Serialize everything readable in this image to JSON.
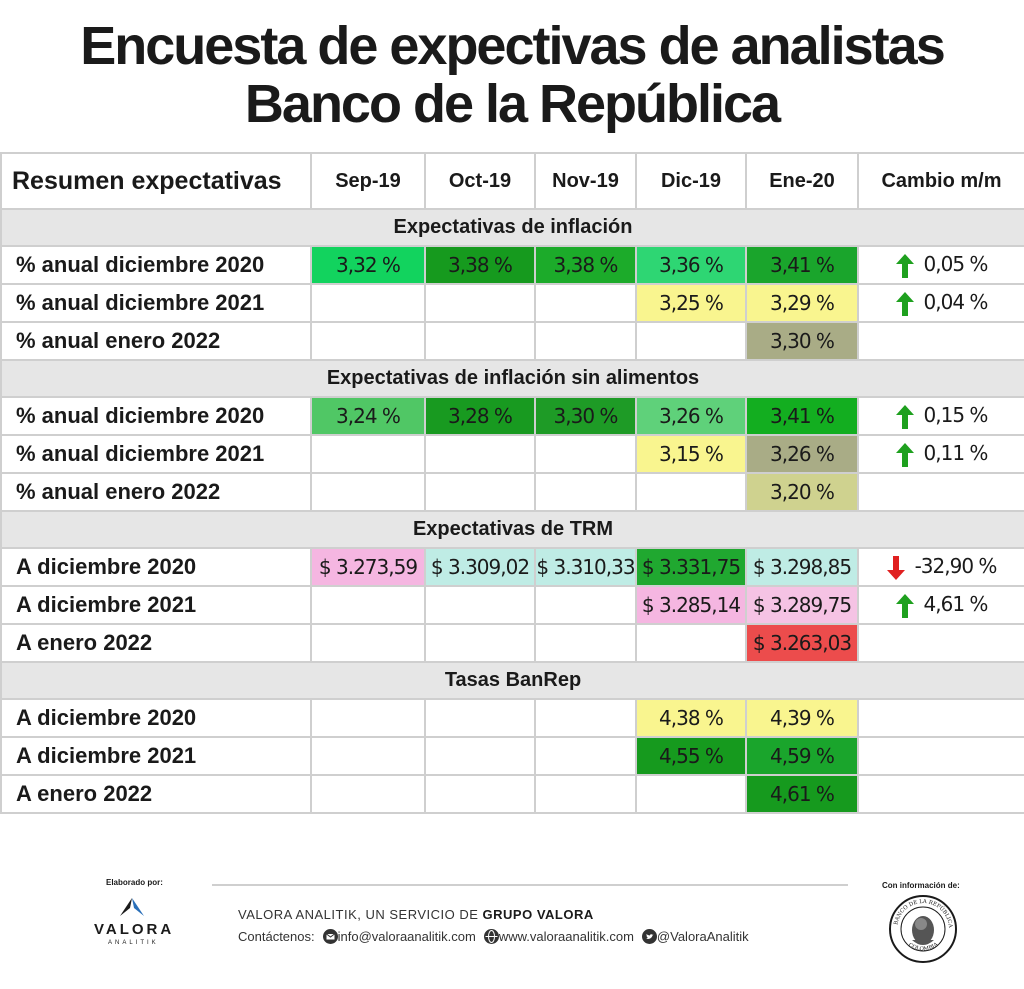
{
  "title": {
    "line1": "Encuesta de expectivas de analistas",
    "line2": "Banco de la República"
  },
  "table": {
    "header": [
      "Resumen expectativas",
      "Sep-19",
      "Oct-19",
      "Nov-19",
      "Dic-19",
      "Ene-20",
      "Cambio m/m"
    ],
    "sections": [
      {
        "title": "Expectativas de inflación",
        "rows": [
          {
            "label": "% anual diciembre 2020",
            "values": [
              "3,32 %",
              "3,38 %",
              "3,38 %",
              "3,36 %",
              "3,41 %"
            ],
            "colors": [
              "#12d35e",
              "#169a1e",
              "#1cab2a",
              "#2ed673",
              "#1aa52c"
            ],
            "change": "0,05 %",
            "direction": "up"
          },
          {
            "label": "% anual diciembre 2021",
            "values": [
              "",
              "",
              "",
              "3,25 %",
              "3,29 %"
            ],
            "colors": [
              "",
              "",
              "",
              "#f9f58f",
              "#f9f58f"
            ],
            "change": "0,04 %",
            "direction": "up"
          },
          {
            "label": "% anual enero 2022",
            "values": [
              "",
              "",
              "",
              "",
              "3,30 %"
            ],
            "colors": [
              "",
              "",
              "",
              "",
              "#a9ac86"
            ],
            "change": "",
            "direction": ""
          }
        ]
      },
      {
        "title": "Expectativas de inflación sin alimentos",
        "rows": [
          {
            "label": "% anual diciembre 2020",
            "values": [
              "3,24 %",
              "3,28 %",
              "3,30 %",
              "3,26 %",
              "3,41 %"
            ],
            "colors": [
              "#50c765",
              "#189a20",
              "#1e9b26",
              "#5fd17a",
              "#13ae20"
            ],
            "change": "0,15 %",
            "direction": "up"
          },
          {
            "label": "% anual diciembre 2021",
            "values": [
              "",
              "",
              "",
              "3,15 %",
              "3,26 %"
            ],
            "colors": [
              "",
              "",
              "",
              "#f9f58f",
              "#a9ac86"
            ],
            "change": "0,11 %",
            "direction": "up"
          },
          {
            "label": "% anual enero 2022",
            "values": [
              "",
              "",
              "",
              "",
              "3,20 %"
            ],
            "colors": [
              "",
              "",
              "",
              "",
              "#cfd28f"
            ],
            "change": "",
            "direction": ""
          }
        ]
      },
      {
        "title": "Expectativas de TRM",
        "rows": [
          {
            "label": "A diciembre 2020",
            "values": [
              "$ 3.273,59",
              "$ 3.309,02",
              "$ 3.310,33",
              "$ 3.331,75",
              "$ 3.298,85"
            ],
            "colors": [
              "#f5b6e1",
              "#bfece5",
              "#bfece5",
              "#20a830",
              "#bfece5"
            ],
            "change": "-32,90 %",
            "direction": "down"
          },
          {
            "label": "A diciembre 2021",
            "values": [
              "",
              "",
              "",
              "$ 3.285,14",
              "$ 3.289,75"
            ],
            "colors": [
              "",
              "",
              "",
              "#f5b6e1",
              "#f5c3e4"
            ],
            "change": "4,61 %",
            "direction": "up"
          },
          {
            "label": "A enero 2022",
            "values": [
              "",
              "",
              "",
              "",
              "$ 3.263,03"
            ],
            "colors": [
              "",
              "",
              "",
              "",
              "#ec4c4c"
            ],
            "change": "",
            "direction": ""
          }
        ]
      },
      {
        "title": "Tasas BanRep",
        "rows": [
          {
            "label": "A diciembre 2020",
            "values": [
              "",
              "",
              "",
              "4,38 %",
              "4,39 %"
            ],
            "colors": [
              "",
              "",
              "",
              "#f9f58f",
              "#f9f58f"
            ],
            "change": "",
            "direction": ""
          },
          {
            "label": "A diciembre 2021",
            "values": [
              "",
              "",
              "",
              "4,55 %",
              "4,59 %"
            ],
            "colors": [
              "",
              "",
              "",
              "#169a1e",
              "#1aa52c"
            ],
            "change": "",
            "direction": ""
          },
          {
            "label": "A enero 2022",
            "values": [
              "",
              "",
              "",
              "",
              "4,61 %"
            ],
            "colors": [
              "",
              "",
              "",
              "",
              "#169a1e"
            ],
            "change": "",
            "direction": ""
          }
        ]
      }
    ]
  },
  "colors": {
    "arrow_up": "#1ea01e",
    "arrow_down": "#e02020"
  },
  "footer": {
    "elaborado": "Elaborado por:",
    "logo_name": "VALORA",
    "logo_sub": "ANALITIK",
    "service_prefix": "VALORA ANALITIK, UN SERVICIO DE ",
    "service_brand": "GRUPO VALORA",
    "contact_label": "Contáctenos:",
    "email": "info@valoraanalitik.com",
    "website": "www.valoraanalitik.com",
    "twitter": "@ValoraAnalitik",
    "con_info": "Con información de:",
    "seal_top": "BANCO DE LA REPÚBLICA",
    "seal_bottom": "COLOMBIA"
  }
}
